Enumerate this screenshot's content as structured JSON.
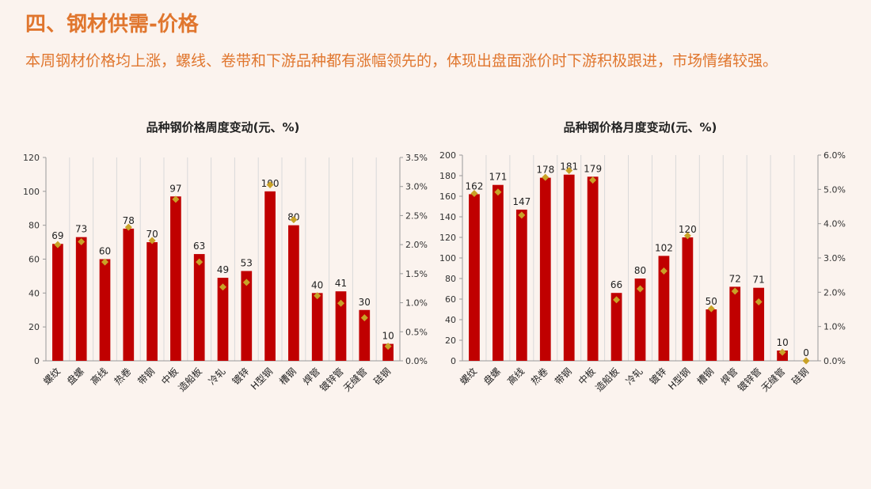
{
  "page": {
    "title": "四、钢材供需-价格",
    "subtitle": "本周钢材价格均上涨，螺线、卷带和下游品种都有涨幅领先的，体现出盘面涨价时下游积极跟进，市场情绪较强。"
  },
  "colors": {
    "bar": "#c00000",
    "marker": "#c9a227",
    "accent": "#e0762e"
  },
  "chart_data": [
    {
      "type": "bar",
      "title": "品种钢价格周度变动(元、%)",
      "categories": [
        "螺纹",
        "盘螺",
        "高线",
        "热卷",
        "带钢",
        "中板",
        "造船板",
        "冷轧",
        "镀锌",
        "H型钢",
        "槽钢",
        "焊管",
        "镀锌管",
        "无缝管",
        "硅钢"
      ],
      "series": [
        {
          "type": "bar",
          "axis": "left",
          "values": [
            69,
            73,
            60,
            78,
            70,
            97,
            63,
            49,
            53,
            100,
            80,
            40,
            41,
            30,
            10
          ]
        },
        {
          "type": "marker",
          "axis": "right",
          "values": [
            2.0,
            2.05,
            1.7,
            2.3,
            2.07,
            2.78,
            1.7,
            1.27,
            1.35,
            3.03,
            2.43,
            1.12,
            0.99,
            0.74,
            0.25
          ]
        }
      ],
      "ylim": [
        0,
        120
      ],
      "yticks": [
        0,
        20,
        40,
        60,
        80,
        100,
        120
      ],
      "y2lim": [
        0,
        3.5
      ],
      "y2ticks": [
        "0.0%",
        "0.5%",
        "1.0%",
        "1.5%",
        "2.0%",
        "2.5%",
        "3.0%",
        "3.5%"
      ],
      "grid": true,
      "legend": "none"
    },
    {
      "type": "bar",
      "title": "品种钢价格月度变动(元、%)",
      "categories": [
        "螺纹",
        "盘螺",
        "高线",
        "热卷",
        "带钢",
        "中板",
        "造船板",
        "冷轧",
        "镀锌",
        "H型钢",
        "槽钢",
        "焊管",
        "镀锌管",
        "无缝管",
        "硅钢"
      ],
      "series": [
        {
          "type": "bar",
          "axis": "left",
          "values": [
            162,
            171,
            147,
            178,
            181,
            179,
            66,
            80,
            102,
            120,
            50,
            72,
            71,
            10,
            0
          ]
        },
        {
          "type": "marker",
          "axis": "right",
          "values": [
            4.88,
            4.92,
            4.25,
            5.35,
            5.55,
            5.27,
            1.78,
            2.1,
            2.62,
            3.65,
            1.52,
            2.03,
            1.72,
            0.25,
            0.0
          ]
        }
      ],
      "ylim": [
        0,
        200
      ],
      "yticks": [
        0,
        20,
        40,
        60,
        80,
        100,
        120,
        140,
        160,
        180,
        200
      ],
      "y2lim": [
        0,
        6.0
      ],
      "y2ticks": [
        "0.0%",
        "1.0%",
        "2.0%",
        "3.0%",
        "4.0%",
        "5.0%",
        "6.0%"
      ],
      "grid": true,
      "legend": "none"
    }
  ]
}
